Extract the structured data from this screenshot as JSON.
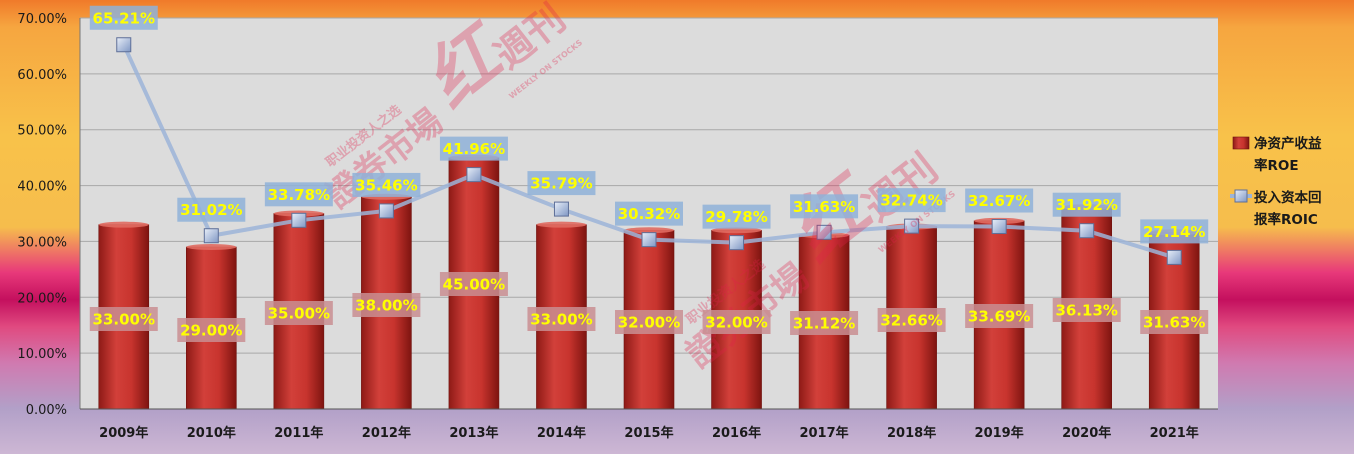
{
  "chart_data": {
    "type": "bar+line",
    "categories": [
      "2009年",
      "2010年",
      "2011年",
      "2012年",
      "2013年",
      "2014年",
      "2015年",
      "2016年",
      "2017年",
      "2018年",
      "2019年",
      "2020年",
      "2021年"
    ],
    "series": [
      {
        "name": "净资产收益率ROE",
        "type": "bar",
        "values": [
          33.0,
          29.0,
          35.0,
          38.0,
          45.0,
          33.0,
          32.0,
          32.0,
          31.12,
          32.66,
          33.69,
          36.13,
          31.63
        ],
        "labels": [
          "33.00%",
          "29.00%",
          "35.00%",
          "38.00%",
          "45.00%",
          "33.00%",
          "32.00%",
          "32.00%",
          "31.12%",
          "32.66%",
          "33.69%",
          "36.13%",
          "31.63%"
        ],
        "color": "#c0302a"
      },
      {
        "name": "投入资本回报率ROIC",
        "type": "line",
        "values": [
          65.21,
          31.02,
          33.78,
          35.46,
          41.96,
          35.79,
          30.32,
          29.78,
          31.63,
          32.74,
          32.67,
          31.92,
          27.14
        ],
        "labels": [
          "65.21%",
          "31.02%",
          "33.78%",
          "35.46%",
          "41.96%",
          "35.79%",
          "30.32%",
          "29.78%",
          "31.63%",
          "32.74%",
          "32.67%",
          "31.92%",
          "27.14%"
        ],
        "color": "#9cb4d8"
      }
    ],
    "y_ticks": [
      "0.00%",
      "10.00%",
      "20.00%",
      "30.00%",
      "40.00%",
      "50.00%",
      "60.00%",
      "70.00%"
    ],
    "ylim": [
      0,
      70
    ],
    "grid": true,
    "legend": {
      "placement": "right",
      "items": [
        {
          "lines": [
            "净资产收益",
            "率ROE"
          ]
        },
        {
          "lines": [
            "投入资本回",
            "报率ROIC"
          ]
        }
      ]
    }
  },
  "watermark": {
    "main": "證券市場",
    "script": "红",
    "suffix": "週刊",
    "tagline": "职业投资人之选",
    "english": "WEEKLY ON STOCKS"
  },
  "colors": {
    "plot_bg": "#dcdcdc",
    "grid": "#a8a8a8",
    "label_bg_bar": "#c98e92",
    "label_bg_line": "#8fb2d8"
  }
}
